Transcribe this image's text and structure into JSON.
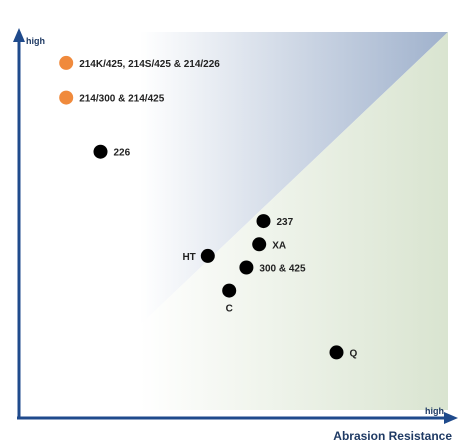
{
  "chart_data": {
    "type": "scatter",
    "title": "",
    "xlabel": "Abrasion Resistance",
    "ylabel": "",
    "x_axis_end_label": "high",
    "y_axis_end_label": "high",
    "xlim": [
      0,
      100
    ],
    "ylim": [
      0,
      100
    ],
    "grid": false,
    "legend": "none",
    "points": [
      {
        "label": "214K/425, 214S/425 & 214/226",
        "x": 11,
        "y": 92,
        "color": "#f08a3c",
        "label_side": "right"
      },
      {
        "label": "214/300 & 214/425",
        "x": 11,
        "y": 83,
        "color": "#f08a3c",
        "label_side": "right"
      },
      {
        "label": "226",
        "x": 19,
        "y": 69,
        "color": "#000000",
        "label_side": "right"
      },
      {
        "label": "237",
        "x": 57,
        "y": 51,
        "color": "#000000",
        "label_side": "right"
      },
      {
        "label": "XA",
        "x": 56,
        "y": 45,
        "color": "#000000",
        "label_side": "right"
      },
      {
        "label": "HT",
        "x": 44,
        "y": 42,
        "color": "#000000",
        "label_side": "left"
      },
      {
        "label": "300 & 425",
        "x": 53,
        "y": 39,
        "color": "#000000",
        "label_side": "right"
      },
      {
        "label": "C",
        "x": 49,
        "y": 33,
        "color": "#000000",
        "label_side": "below"
      },
      {
        "label": "Q",
        "x": 74,
        "y": 17,
        "color": "#000000",
        "label_side": "right"
      }
    ],
    "colors": {
      "axis": "#1f4a8c",
      "upper_region": "#9fb1cc",
      "lower_region": "#d9e4d0"
    }
  }
}
